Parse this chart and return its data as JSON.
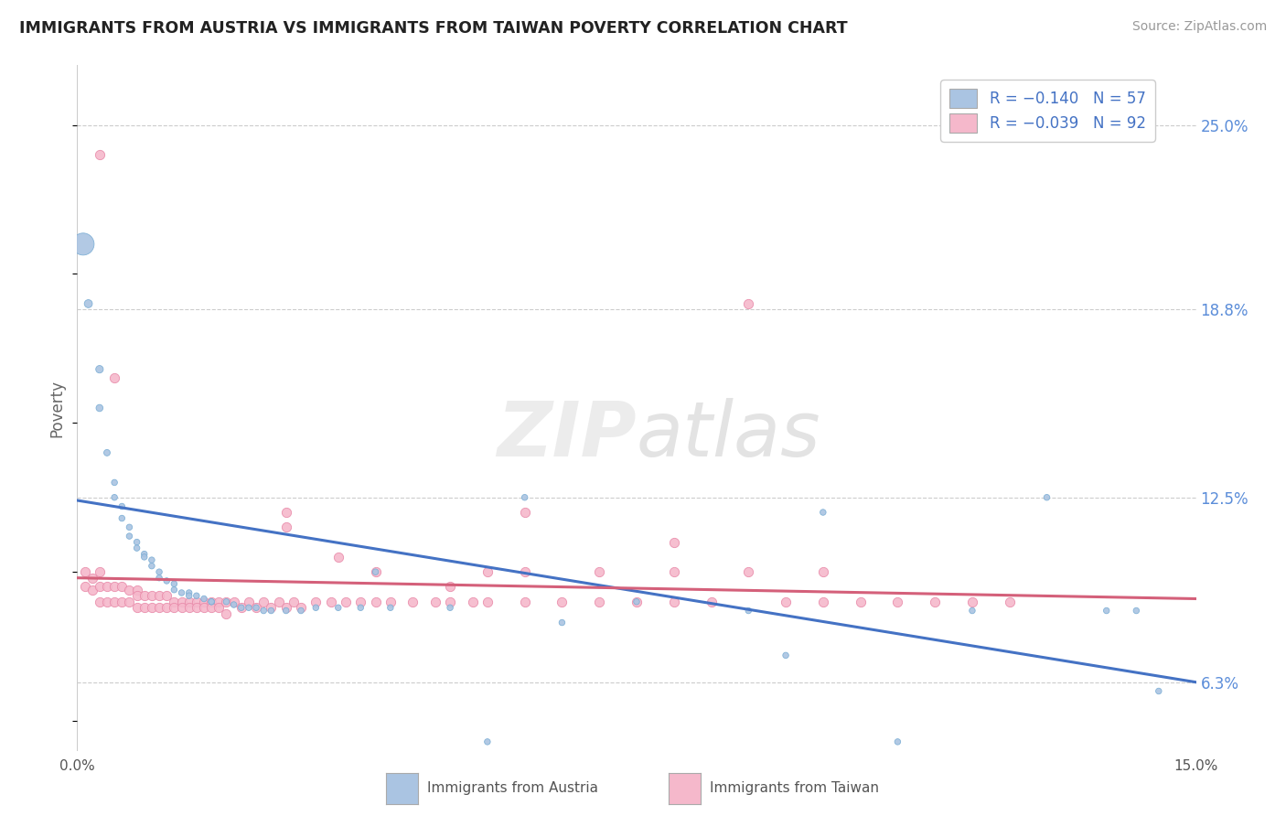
{
  "title": "IMMIGRANTS FROM AUSTRIA VS IMMIGRANTS FROM TAIWAN POVERTY CORRELATION CHART",
  "source": "Source: ZipAtlas.com",
  "ylabel": "Poverty",
  "x_min": 0.0,
  "x_max": 0.15,
  "y_min": 0.04,
  "y_max": 0.27,
  "yticks": [
    0.063,
    0.125,
    0.188,
    0.25
  ],
  "ytick_labels": [
    "6.3%",
    "12.5%",
    "18.8%",
    "25.0%"
  ],
  "austria_color": "#aac4e2",
  "austria_edge": "#7aadd4",
  "taiwan_color": "#f5b8cb",
  "taiwan_edge": "#e888a8",
  "austria_line_color": "#4472c4",
  "taiwan_line_color": "#d4607a",
  "austria_line_x": [
    0.0,
    0.15
  ],
  "austria_line_y": [
    0.124,
    0.063
  ],
  "taiwan_line_x": [
    0.0,
    0.15
  ],
  "taiwan_line_y": [
    0.098,
    0.091
  ],
  "legend_label_austria": "R = −0.140   N = 57",
  "legend_label_taiwan": "R = −0.039   N = 92",
  "bottom_label_austria": "Immigrants from Austria",
  "bottom_label_taiwan": "Immigrants from Taiwan",
  "austria_scatter_x": [
    0.0008,
    0.0015,
    0.003,
    0.003,
    0.004,
    0.005,
    0.005,
    0.006,
    0.006,
    0.007,
    0.007,
    0.008,
    0.008,
    0.009,
    0.009,
    0.01,
    0.01,
    0.011,
    0.011,
    0.012,
    0.013,
    0.013,
    0.014,
    0.015,
    0.015,
    0.016,
    0.017,
    0.018,
    0.018,
    0.02,
    0.021,
    0.022,
    0.023,
    0.024,
    0.025,
    0.026,
    0.028,
    0.03,
    0.032,
    0.035,
    0.038,
    0.04,
    0.042,
    0.05,
    0.055,
    0.06,
    0.065,
    0.075,
    0.09,
    0.095,
    0.1,
    0.11,
    0.12,
    0.13,
    0.138,
    0.142,
    0.145
  ],
  "austria_scatter_y": [
    0.21,
    0.19,
    0.168,
    0.155,
    0.14,
    0.13,
    0.125,
    0.122,
    0.118,
    0.115,
    0.112,
    0.11,
    0.108,
    0.106,
    0.105,
    0.104,
    0.102,
    0.1,
    0.098,
    0.097,
    0.096,
    0.094,
    0.093,
    0.093,
    0.092,
    0.092,
    0.091,
    0.09,
    0.09,
    0.09,
    0.089,
    0.088,
    0.088,
    0.088,
    0.087,
    0.087,
    0.087,
    0.087,
    0.088,
    0.088,
    0.088,
    0.1,
    0.088,
    0.088,
    0.043,
    0.125,
    0.083,
    0.09,
    0.087,
    0.072,
    0.12,
    0.043,
    0.087,
    0.125,
    0.087,
    0.087,
    0.06
  ],
  "austria_scatter_size": [
    300,
    40,
    35,
    30,
    25,
    22,
    22,
    22,
    22,
    22,
    22,
    22,
    22,
    22,
    22,
    22,
    22,
    22,
    22,
    22,
    22,
    22,
    22,
    22,
    22,
    22,
    22,
    22,
    22,
    22,
    22,
    22,
    22,
    22,
    22,
    22,
    22,
    22,
    22,
    22,
    22,
    22,
    22,
    22,
    22,
    22,
    22,
    22,
    22,
    22,
    22,
    22,
    22,
    22,
    22,
    22,
    22
  ],
  "taiwan_scatter_x": [
    0.001,
    0.001,
    0.002,
    0.002,
    0.003,
    0.003,
    0.003,
    0.004,
    0.004,
    0.005,
    0.005,
    0.006,
    0.006,
    0.007,
    0.007,
    0.008,
    0.008,
    0.008,
    0.009,
    0.009,
    0.01,
    0.01,
    0.011,
    0.011,
    0.012,
    0.012,
    0.013,
    0.013,
    0.014,
    0.014,
    0.015,
    0.015,
    0.016,
    0.016,
    0.017,
    0.017,
    0.018,
    0.018,
    0.019,
    0.019,
    0.02,
    0.02,
    0.021,
    0.022,
    0.023,
    0.024,
    0.025,
    0.026,
    0.027,
    0.028,
    0.029,
    0.03,
    0.032,
    0.034,
    0.036,
    0.038,
    0.04,
    0.042,
    0.045,
    0.048,
    0.05,
    0.053,
    0.055,
    0.06,
    0.065,
    0.07,
    0.075,
    0.08,
    0.085,
    0.09,
    0.095,
    0.1,
    0.105,
    0.11,
    0.115,
    0.12,
    0.125,
    0.028,
    0.035,
    0.04,
    0.05,
    0.055,
    0.06,
    0.07,
    0.08,
    0.09,
    0.1,
    0.028,
    0.06,
    0.08,
    0.003,
    0.005
  ],
  "taiwan_scatter_y": [
    0.1,
    0.095,
    0.098,
    0.094,
    0.1,
    0.095,
    0.09,
    0.095,
    0.09,
    0.095,
    0.09,
    0.095,
    0.09,
    0.094,
    0.09,
    0.094,
    0.092,
    0.088,
    0.092,
    0.088,
    0.092,
    0.088,
    0.092,
    0.088,
    0.092,
    0.088,
    0.09,
    0.088,
    0.09,
    0.088,
    0.09,
    0.088,
    0.09,
    0.088,
    0.09,
    0.088,
    0.09,
    0.088,
    0.09,
    0.088,
    0.09,
    0.086,
    0.09,
    0.088,
    0.09,
    0.088,
    0.09,
    0.088,
    0.09,
    0.088,
    0.09,
    0.088,
    0.09,
    0.09,
    0.09,
    0.09,
    0.09,
    0.09,
    0.09,
    0.09,
    0.09,
    0.09,
    0.09,
    0.09,
    0.09,
    0.09,
    0.09,
    0.09,
    0.09,
    0.19,
    0.09,
    0.09,
    0.09,
    0.09,
    0.09,
    0.09,
    0.09,
    0.115,
    0.105,
    0.1,
    0.095,
    0.1,
    0.1,
    0.1,
    0.1,
    0.1,
    0.1,
    0.12,
    0.12,
    0.11,
    0.24,
    0.165
  ]
}
